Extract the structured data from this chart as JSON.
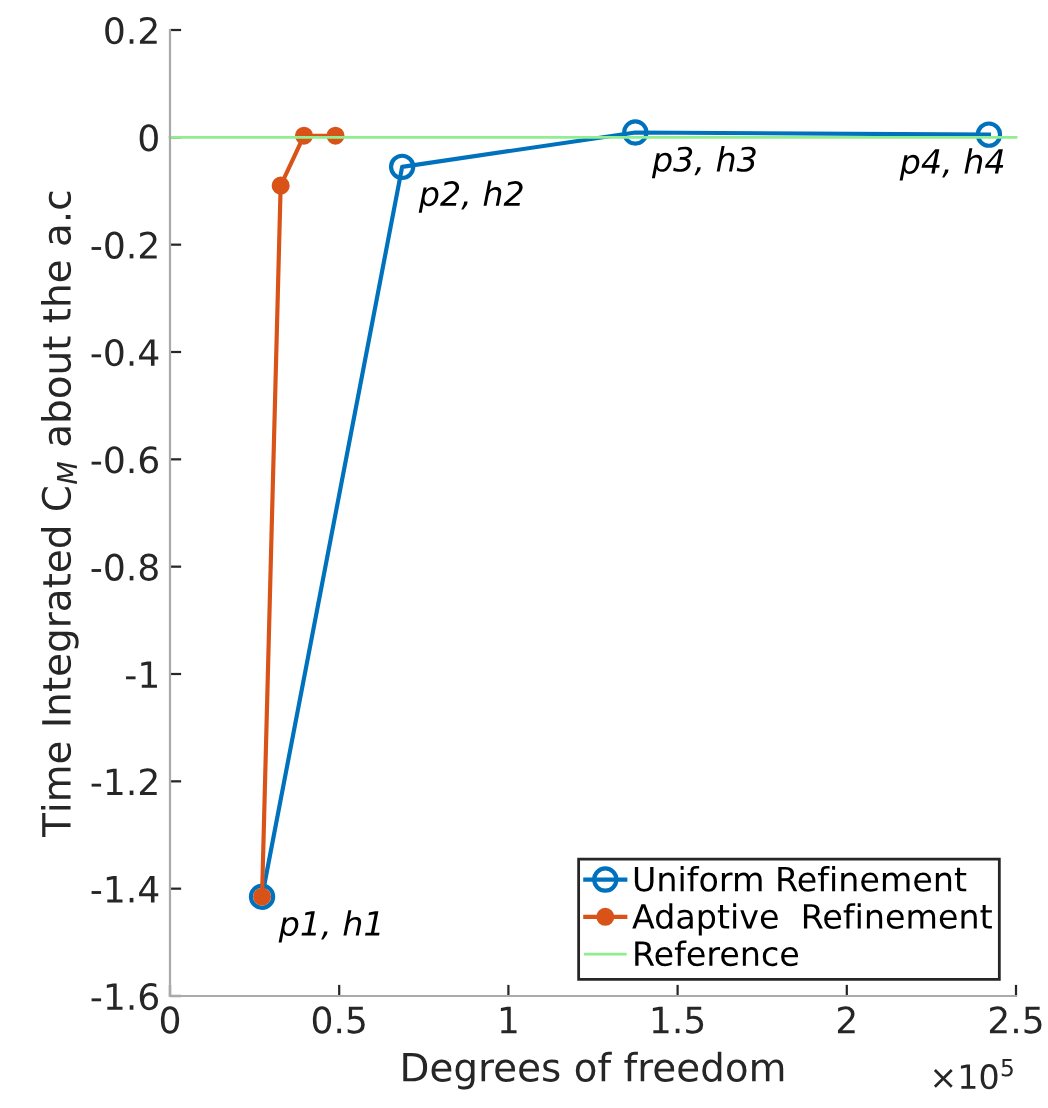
{
  "chart_data": {
    "type": "line",
    "xlabel": "Degrees of freedom",
    "ylabel": "Time Integrated C$_{M}$ about the a.c",
    "xlim": [
      0,
      2.5
    ],
    "xticks": [
      0,
      0.5,
      1,
      1.5,
      2,
      2.5
    ],
    "ylim": [
      -1.6,
      0.2
    ],
    "yticks": [
      -1.6,
      -1.4,
      -1.2,
      -1,
      -0.8,
      -0.6,
      -0.4,
      -0.2,
      0,
      0.2
    ],
    "series": [
      {
        "name": "Uniform Refinement",
        "color": "#0072bd",
        "marker": "circle",
        "x": [
          0.272,
          0.686,
          1.375,
          2.42
        ],
        "values": [
          -1.415,
          -0.055,
          0.009,
          0.005
        ]
      },
      {
        "name": "Adaptive  Refinement",
        "color": "#d95319",
        "marker": "circle",
        "x": [
          0.272,
          0.327,
          0.396,
          0.489
        ],
        "values": [
          -1.415,
          -0.09,
          0.003,
          0.003
        ]
      },
      {
        "name": "Reference",
        "color": "#90ee90",
        "marker": "none",
        "x": [
          0,
          2.5
        ],
        "values": [
          0,
          0
        ]
      }
    ],
    "annotations": [
      {
        "text": "p1, h1",
        "x": 0.272,
        "y": -1.415
      },
      {
        "text": "p2, h2",
        "x": 0.686,
        "y": -0.055
      },
      {
        "text": "p3, h3",
        "x": 1.375,
        "y": 0.009
      },
      {
        "text": "p4, h4",
        "x": 2.42,
        "y": 0.005
      },
      "×10$^{5}$"
    ],
    "grid": false,
    "legend": "bottom right"
  }
}
